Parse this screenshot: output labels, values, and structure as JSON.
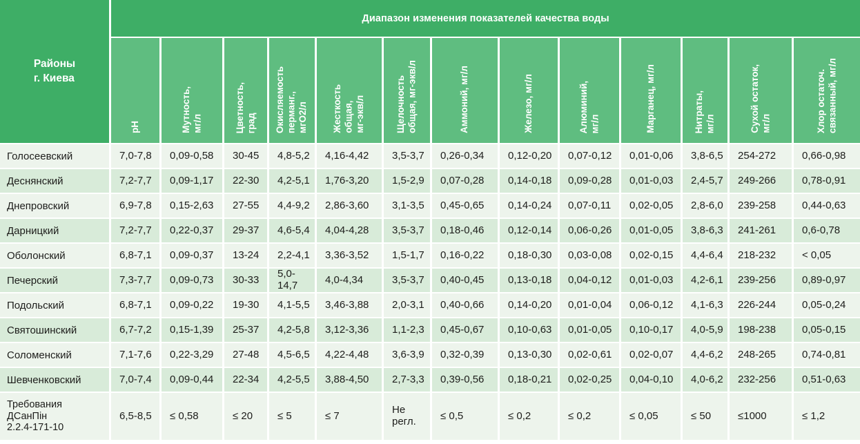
{
  "colors": {
    "header_dark_green": "#3eae66",
    "header_light_green": "#5fbd80",
    "row_pale": "#edf4ec",
    "row_green": "#d8ebd9",
    "text": "#1d1d1b",
    "background": "#ffffff"
  },
  "header": {
    "span_title": "Диапазон изменения показателей качества воды",
    "corner_display": "Районы\nг. Киева"
  },
  "columns_display": [
    "рН",
    "Мутность,\nмг/л",
    "Цветность,\nград",
    "Окисляемость\nперманг.,\nмгО2/л",
    "Жесткость\nобщая,\nмг-экв/л",
    "Щелочность\nобщая, мг-экв/л",
    "Аммоний, мг/л",
    "Железо, мг/л",
    "Алюминий,\nмг/л",
    "Марганец, мг/л",
    "Нитраты,\nмг/л",
    "Сухой остаток,\nмг/л",
    "Хлор остаточ.\nсвязанный, мг/л"
  ],
  "chart_data": {
    "type": "table",
    "title": "Диапазон изменения показателей качества воды",
    "row_header": "Районы г. Киева",
    "columns": [
      "рН",
      "Мутность, мг/л",
      "Цветность, град",
      "Окисляемость перманг., мгО2/л",
      "Жесткость общая, мг-экв/л",
      "Щелочность общая, мг-экв/л",
      "Аммоний, мг/л",
      "Железо, мг/л",
      "Алюминий, мг/л",
      "Марганец, мг/л",
      "Нитраты, мг/л",
      "Сухой остаток, мг/л",
      "Хлор остаточ. связанный, мг/л"
    ],
    "rows": [
      {
        "district": "Голосеевский",
        "values": [
          "7,0-7,8",
          "0,09-0,58",
          "30-45",
          "4,8-5,2",
          "4,16-4,42",
          "3,5-3,7",
          "0,26-0,34",
          "0,12-0,20",
          "0,07-0,12",
          "0,01-0,06",
          "3,8-6,5",
          "254-272",
          "0,66-0,98"
        ]
      },
      {
        "district": "Деснянский",
        "values": [
          "7,2-7,7",
          "0,09-1,17",
          "22-30",
          "4,2-5,1",
          "1,76-3,20",
          "1,5-2,9",
          "0,07-0,28",
          "0,14-0,18",
          "0,09-0,28",
          "0,01-0,03",
          "2,4-5,7",
          "249-266",
          "0,78-0,91"
        ]
      },
      {
        "district": "Днепровский",
        "values": [
          "6,9-7,8",
          "0,15-2,63",
          "27-55",
          "4,4-9,2",
          "2,86-3,60",
          "3,1-3,5",
          "0,45-0,65",
          "0,14-0,24",
          "0,07-0,11",
          "0,02-0,05",
          "2,8-6,0",
          "239-258",
          "0,44-0,63"
        ]
      },
      {
        "district": "Дарницкий",
        "values": [
          "7,2-7,7",
          "0,22-0,37",
          "29-37",
          "4,6-5,4",
          "4,04-4,28",
          "3,5-3,7",
          "0,18-0,46",
          "0,12-0,14",
          "0,06-0,26",
          "0,01-0,05",
          "3,8-6,3",
          "241-261",
          "0,6-0,78"
        ]
      },
      {
        "district": "Оболонский",
        "values": [
          "6,8-7,1",
          "0,09-0,37",
          "13-24",
          "2,2-4,1",
          "3,36-3,52",
          "1,5-1,7",
          "0,16-0,22",
          "0,18-0,30",
          "0,03-0,08",
          "0,02-0,15",
          "4,4-6,4",
          "218-232",
          "< 0,05"
        ]
      },
      {
        "district": "Печерский",
        "values": [
          "7,3-7,7",
          "0,09-0,73",
          "30-33",
          "5,0-14,7",
          "4,0-4,34",
          "3,5-3,7",
          "0,40-0,45",
          "0,13-0,18",
          "0,04-0,12",
          "0,01-0,03",
          "4,2-6,1",
          "239-256",
          "0,89-0,97"
        ]
      },
      {
        "district": "Подольский",
        "values": [
          "6,8-7,1",
          "0,09-0,22",
          "19-30",
          "4,1-5,5",
          "3,46-3,88",
          "2,0-3,1",
          "0,40-0,66",
          "0,14-0,20",
          "0,01-0,04",
          "0,06-0,12",
          "4,1-6,3",
          "226-244",
          "0,05-0,24"
        ]
      },
      {
        "district": "Святошинский",
        "values": [
          "6,7-7,2",
          "0,15-1,39",
          "25-37",
          "4,2-5,8",
          "3,12-3,36",
          "1,1-2,3",
          "0,45-0,67",
          "0,10-0,63",
          "0,01-0,05",
          "0,10-0,17",
          "4,0-5,9",
          "198-238",
          "0,05-0,15"
        ]
      },
      {
        "district": "Соломенский",
        "values": [
          "7,1-7,6",
          "0,22-3,29",
          "27-48",
          "4,5-6,5",
          "4,22-4,48",
          "3,6-3,9",
          "0,32-0,39",
          "0,13-0,30",
          "0,02-0,61",
          "0,02-0,07",
          "4,4-6,2",
          "248-265",
          "0,74-0,81"
        ]
      },
      {
        "district": "Шевченковский",
        "values": [
          "7,0-7,4",
          "0,09-0,44",
          "22-34",
          "4,2-5,5",
          "3,88-4,50",
          "2,7-3,3",
          "0,39-0,56",
          "0,18-0,21",
          "0,02-0,25",
          "0,04-0,10",
          "4,0-6,2",
          "232-256",
          "0,51-0,63"
        ]
      },
      {
        "district": "Требования ДСанПін 2.2.4-171-10",
        "district_display": "Требования\nДСанПін\n2.2.4-171-10",
        "requirements": true,
        "values": [
          "6,5-8,5",
          "≤ 0,58",
          "≤ 20",
          "≤ 5",
          "≤ 7",
          "Не регл.",
          "≤ 0,5",
          "≤ 0,2",
          "≤ 0,2",
          "≤ 0,05",
          "≤ 50",
          "≤1000",
          "≤ 1,2"
        ],
        "display_overrides": {
          "5": "Не\nрегл."
        }
      }
    ]
  }
}
